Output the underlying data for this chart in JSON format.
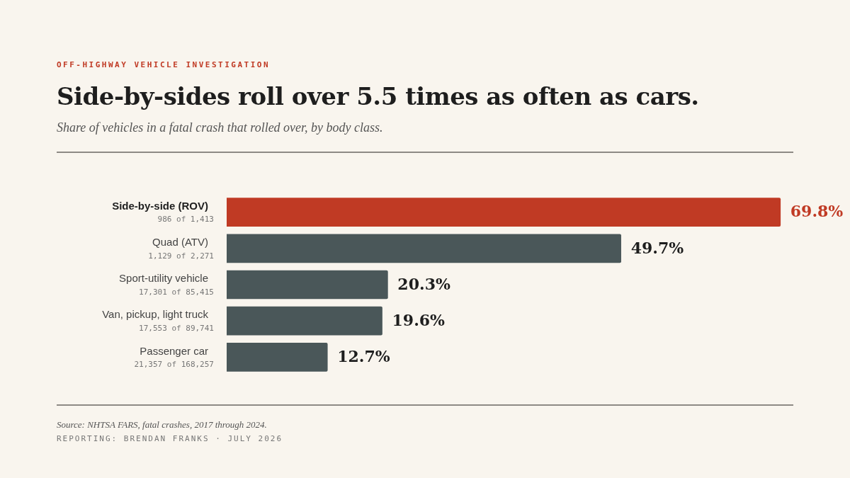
{
  "chart_data": {
    "type": "bar",
    "orientation": "horizontal",
    "title": "Side-by-sides roll over 5.5 times as often as cars.",
    "subtitle": "Share of vehicles in a fatal crash that rolled over, by body class.",
    "categories": [
      "Side-by-side (ROV)",
      "Quad (ATV)",
      "Sport-utility vehicle",
      "Van, pickup, light truck",
      "Passenger car"
    ],
    "values": [
      69.8,
      49.7,
      20.3,
      19.6,
      12.7
    ],
    "value_labels": [
      "69.8%",
      "49.7%",
      "20.3%",
      "19.6%",
      "12.7%"
    ],
    "colors": [
      "#c03a24",
      "#4a5759",
      "#4a5759",
      "#4a5759",
      "#4a5759"
    ],
    "tick_labels": "y",
    "grid": false,
    "legend": false,
    "annotations": [
      "986 of 1,413",
      "1,129 of 2,271",
      "17,301 of 85,415",
      "17,553 of 89,741",
      "21,357 of 168,257",
      "OFF-HIGHWAY VEHICLE INVESTIGATION",
      "Source: NHTSA FARS, fatal crashes, 2017 through 2024.",
      "REPORTING: BRENDAN FRANKS · JULY 2026"
    ]
  }
}
